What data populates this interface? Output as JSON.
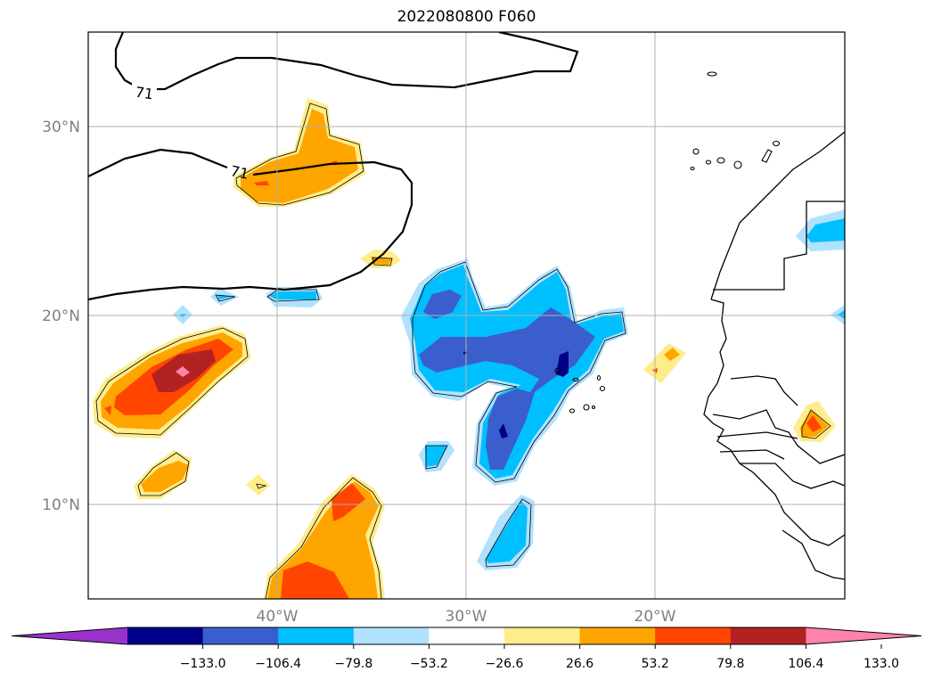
{
  "title": "2022080800 F060",
  "map": {
    "lon_range": [
      -50,
      -10
    ],
    "lat_range": [
      5,
      35
    ],
    "lat_ticks": [
      {
        "value": 10,
        "label": "10°N"
      },
      {
        "value": 20,
        "label": "20°N"
      },
      {
        "value": 30,
        "label": "30°N"
      }
    ],
    "lon_ticks": [
      {
        "value": -40,
        "label": "40°W"
      },
      {
        "value": -30,
        "label": "30°W"
      },
      {
        "value": -20,
        "label": "20°W"
      }
    ],
    "contour_labels": [
      "71",
      "71"
    ]
  },
  "colorbar": {
    "levels": [
      "−133.0",
      "−106.4",
      "−79.8",
      "−53.2",
      "−26.6",
      "26.6",
      "53.2",
      "79.8",
      "106.4",
      "133.0"
    ],
    "colors": [
      "#9932cc",
      "#00008b",
      "#3a5fcd",
      "#00bfff",
      "#b0e2ff",
      "#ffffff",
      "#ffec8b",
      "#ffa500",
      "#ff4500",
      "#b22222",
      "#ff82ab"
    ]
  }
}
